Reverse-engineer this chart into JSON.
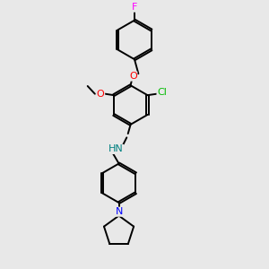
{
  "background_color": "#e8e8e8",
  "bond_color": "#000000",
  "atom_colors": {
    "F": "#ff00ff",
    "O": "#ff0000",
    "Cl": "#00bb00",
    "N": "#0000ff",
    "NH": "#008080"
  },
  "figsize": [
    3.0,
    3.0
  ],
  "dpi": 100
}
